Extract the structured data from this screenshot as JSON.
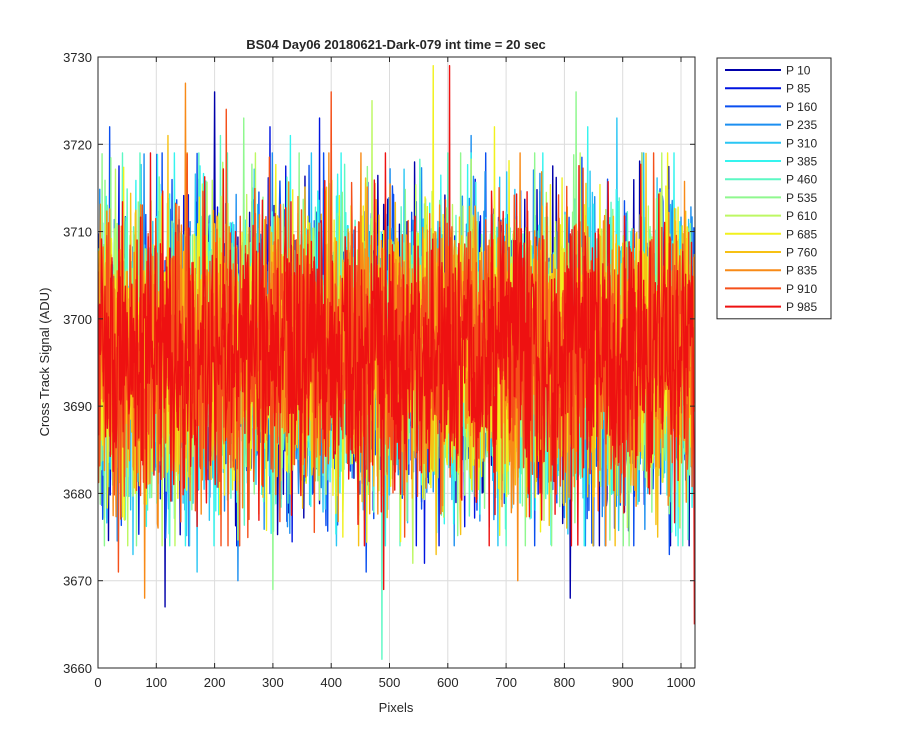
{
  "chart_data": {
    "type": "line",
    "title": "BS04 Day06 20180621-Dark-079 int time = 20 sec",
    "xlabel": "Pixels",
    "ylabel": "Cross Track Signal (ADU)",
    "xlim": [
      0,
      1024
    ],
    "ylim": [
      3660,
      3730
    ],
    "xticks": [
      0,
      100,
      200,
      300,
      400,
      500,
      600,
      700,
      800,
      900,
      1000
    ],
    "yticks": [
      3660,
      3670,
      3680,
      3690,
      3700,
      3710,
      3720,
      3730
    ],
    "grid": true,
    "legend_position": "outside-top-right",
    "n_points": 1024,
    "noise_mean": 3696,
    "noise_sd": 8,
    "series": [
      {
        "name": "P 10",
        "color": "#0000aa",
        "extremes": [
          [
            115,
            3667
          ],
          [
            200,
            3726
          ],
          [
            810,
            3668
          ]
        ]
      },
      {
        "name": "P 85",
        "color": "#0014e0",
        "extremes": [
          [
            295,
            3722
          ],
          [
            380,
            3723
          ],
          [
            560,
            3672
          ]
        ]
      },
      {
        "name": "P 160",
        "color": "#0a4ff0",
        "extremes": [
          [
            20,
            3722
          ],
          [
            460,
            3671
          ],
          [
            980,
            3673
          ]
        ]
      },
      {
        "name": "P 235",
        "color": "#1c8ff0",
        "extremes": [
          [
            240,
            3670
          ],
          [
            640,
            3721
          ],
          [
            870,
            3674
          ]
        ]
      },
      {
        "name": "P 310",
        "color": "#2ac6f4",
        "extremes": [
          [
            170,
            3671
          ],
          [
            890,
            3723
          ],
          [
            60,
            3673
          ]
        ]
      },
      {
        "name": "P 385",
        "color": "#35f4ef",
        "extremes": [
          [
            840,
            3722
          ],
          [
            150,
            3674
          ],
          [
            330,
            3721
          ]
        ]
      },
      {
        "name": "P 460",
        "color": "#5cf8c4",
        "extremes": [
          [
            487,
            3661
          ],
          [
            210,
            3721
          ],
          [
            700,
            3674
          ]
        ]
      },
      {
        "name": "P 535",
        "color": "#8ff88e",
        "extremes": [
          [
            300,
            3669
          ],
          [
            250,
            3723
          ],
          [
            820,
            3726
          ]
        ]
      },
      {
        "name": "P 610",
        "color": "#bdf863",
        "extremes": [
          [
            470,
            3725
          ],
          [
            540,
            3672
          ],
          [
            110,
            3674
          ]
        ]
      },
      {
        "name": "P 685",
        "color": "#f1f11e",
        "extremes": [
          [
            575,
            3729
          ],
          [
            420,
            3675
          ],
          [
            680,
            3722
          ]
        ]
      },
      {
        "name": "P 760",
        "color": "#f7c114",
        "extremes": [
          [
            120,
            3721
          ],
          [
            960,
            3675
          ],
          [
            580,
            3673
          ]
        ]
      },
      {
        "name": "P 835",
        "color": "#f88a17",
        "extremes": [
          [
            80,
            3668
          ],
          [
            150,
            3727
          ],
          [
            720,
            3670
          ]
        ]
      },
      {
        "name": "P 910",
        "color": "#f5501a",
        "extremes": [
          [
            220,
            3724
          ],
          [
            35,
            3671
          ],
          [
            400,
            3726
          ]
        ]
      },
      {
        "name": "P 985",
        "color": "#ee1111",
        "extremes": [
          [
            603,
            3729
          ],
          [
            1023,
            3665
          ],
          [
            490,
            3669
          ]
        ]
      }
    ]
  }
}
